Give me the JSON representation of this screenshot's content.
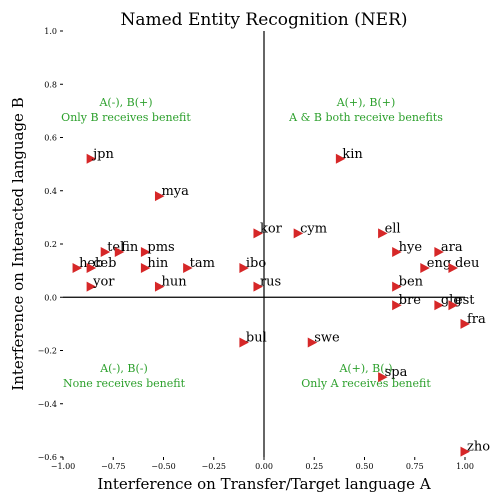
{
  "chart_data": {
    "type": "scatter",
    "title": "Named Entity Recognition (NER)",
    "x_label": "Interference on Transfer/Target language A",
    "y_label": "Interference on Interacted language B",
    "xlim": [
      -1,
      1
    ],
    "ylim": [
      -0.6,
      1.0
    ],
    "xticks": [
      {
        "value": -1,
        "label": "−1.00"
      },
      {
        "value": -0.75,
        "label": "−0.75"
      },
      {
        "value": -0.5,
        "label": "−0.50"
      },
      {
        "value": -0.25,
        "label": "−0.25"
      },
      {
        "value": 0,
        "label": "0.00"
      },
      {
        "value": 0.25,
        "label": "0.25"
      },
      {
        "value": 0.5,
        "label": "0.50"
      },
      {
        "value": 0.75,
        "label": "0.75"
      },
      {
        "value": 1,
        "label": "1.00"
      }
    ],
    "yticks": [
      {
        "value": -0.6,
        "label": "−0.6"
      },
      {
        "value": -0.4,
        "label": "−0.4"
      },
      {
        "value": -0.2,
        "label": "−0.2"
      },
      {
        "value": 0,
        "label": "0.0"
      },
      {
        "value": 0.2,
        "label": "0.2"
      },
      {
        "value": 0.4,
        "label": "0.4"
      },
      {
        "value": 0.6,
        "label": "0.6"
      },
      {
        "value": 0.8,
        "label": "0.8"
      },
      {
        "value": 1.0,
        "label": "1.0"
      }
    ],
    "color": "#d62728",
    "labels": [
      "jpn",
      "mya",
      "kin",
      "kor",
      "cym",
      "ell",
      "tel",
      "fin",
      "pms",
      "hye",
      "ara",
      "heb",
      "ceb",
      "hin",
      "tam",
      "ibo",
      "eng",
      "deu",
      "yor",
      "hun",
      "rus",
      "ben",
      "bre",
      "glg",
      "est",
      "fra",
      "bul",
      "swe",
      "spa",
      "zho"
    ],
    "x": [
      -0.86,
      -0.52,
      0.38,
      -0.03,
      0.17,
      0.59,
      -0.79,
      -0.72,
      -0.59,
      0.66,
      0.87,
      -0.93,
      -0.86,
      -0.59,
      -0.38,
      -0.1,
      0.8,
      0.94,
      -0.86,
      -0.52,
      -0.03,
      0.66,
      0.66,
      0.87,
      0.94,
      1.0,
      -0.1,
      0.24,
      0.59,
      1.0
    ],
    "values": [
      0.52,
      0.38,
      0.52,
      0.24,
      0.24,
      0.24,
      0.17,
      0.17,
      0.17,
      0.17,
      0.17,
      0.11,
      0.11,
      0.11,
      0.11,
      0.11,
      0.11,
      0.11,
      0.04,
      0.04,
      0.04,
      0.04,
      -0.03,
      -0.03,
      -0.03,
      -0.1,
      -0.17,
      -0.17,
      -0.3,
      -0.58
    ],
    "annotations": [
      [
        "A(-), B(+)",
        "Only B receives benefit"
      ],
      [
        "A(+), B(+)",
        "A & B both receive benefits"
      ],
      [
        "A(-), B(-)",
        "None receives benefit"
      ],
      [
        "A(+), B(-)",
        "Only A receives benefit"
      ]
    ]
  }
}
